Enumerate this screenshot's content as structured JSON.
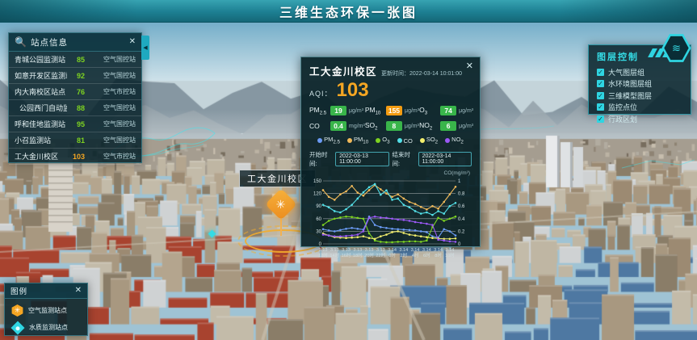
{
  "header": {
    "title": "三维生态环保一张图"
  },
  "colors": {
    "accent_cyan": "#2fd5e2",
    "aqi_orange": "#f5a623",
    "chip_good": "#39b54a",
    "chip_moderate": "#f39c12"
  },
  "station_panel": {
    "title": "站点信息",
    "close_label": "✕",
    "search_icon": "search-icon",
    "rows": [
      {
        "name": "青城公园监测站",
        "value": "85",
        "type": "空气国控站"
      },
      {
        "name": "如意开发区监测站",
        "value": "92",
        "type": "空气国控站"
      },
      {
        "name": "内大南校区站点",
        "value": "76",
        "type": "空气市控站"
      },
      {
        "name": "公园西门自动监测站",
        "value": "88",
        "type": "空气国控站"
      },
      {
        "name": "呼和佳地监测站",
        "value": "95",
        "type": "空气国控站"
      },
      {
        "name": "小召监测站",
        "value": "81",
        "type": "空气国控站"
      },
      {
        "name": "工大金川校区",
        "value": "103",
        "type": "空气市控站"
      }
    ]
  },
  "popup": {
    "title": "工大金川校区",
    "update_time_label": "更新时间：",
    "update_time": "2022-03-14 10:01:00",
    "close_label": "✕",
    "aqi_label": "AQI：",
    "aqi": "103",
    "pollutants": [
      {
        "name": "PM2.5",
        "value": "19",
        "unit": "μg/m³",
        "level": "good"
      },
      {
        "name": "PM10",
        "value": "155",
        "unit": "μg/m³",
        "level": "moderate"
      },
      {
        "name": "O3",
        "value": "74",
        "unit": "μg/m³",
        "level": "good"
      },
      {
        "name": "CO",
        "value": "0.4",
        "unit": "mg/m³",
        "level": "good"
      },
      {
        "name": "SO2",
        "value": "8",
        "unit": "μg/m³",
        "level": "good"
      },
      {
        "name": "NO2",
        "value": "6",
        "unit": "μg/m³",
        "level": "good"
      }
    ],
    "time_range": {
      "start_label": "开始时间:",
      "start": "2022-03-13 11:00:00",
      "end_label": "结束时间:",
      "end": "2022-03-14 11:00:00"
    }
  },
  "chart_data": {
    "type": "line",
    "title": "站点24小时污染物浓度趋势",
    "x_labels": [
      "3.13 12时",
      "3.13 14时",
      "3.13 16时",
      "3.13 18时",
      "3.13 20时",
      "3.13 22时",
      "3.14 0时",
      "3.14 2时",
      "3.14 4时",
      "3.14 6时",
      "3.14 8时",
      "3.14 10时"
    ],
    "y_left": {
      "ticks": [
        0,
        30,
        60,
        90,
        120,
        150
      ],
      "max": 150
    },
    "y_right": {
      "ticks": [
        0,
        0.2,
        0.4,
        0.6,
        0.8,
        1
      ],
      "max": 1,
      "title": "CO(mg/m³)"
    },
    "grid": true,
    "legend_position": "top",
    "series": [
      {
        "name": "PM2.5",
        "color": "#6b9bf5",
        "axis": "left",
        "values": [
          35,
          32,
          30,
          33,
          36,
          38,
          36,
          34,
          65,
          45,
          40,
          38,
          36,
          35,
          34,
          33,
          32,
          30,
          28,
          18,
          15,
          35,
          30,
          20
        ]
      },
      {
        "name": "PM10",
        "color": "#f0b95a",
        "axis": "left",
        "values": [
          128,
          112,
          105,
          118,
          125,
          138,
          122,
          115,
          128,
          140,
          130,
          120,
          112,
          118,
          108,
          100,
          95,
          88,
          82,
          90,
          84,
          100,
          118,
          136
        ]
      },
      {
        "name": "O3",
        "color": "#7ed321",
        "axis": "left",
        "values": [
          45,
          55,
          60,
          63,
          65,
          64,
          62,
          60,
          25,
          8,
          5,
          4,
          4,
          5,
          5,
          6,
          6,
          5,
          8,
          40,
          62,
          55,
          60,
          65
        ]
      },
      {
        "name": "CO",
        "color": "#53e0e8",
        "axis": "right",
        "values": [
          0.62,
          0.58,
          0.52,
          0.5,
          0.55,
          0.62,
          0.72,
          0.82,
          0.9,
          0.95,
          0.78,
          0.85,
          0.7,
          0.72,
          0.62,
          0.58,
          0.52,
          0.48,
          0.5,
          0.46,
          0.52,
          0.48,
          0.6,
          0.65
        ]
      },
      {
        "name": "SO2",
        "color": "#f3ef6d",
        "axis": "left",
        "values": [
          25,
          20,
          16,
          15,
          14,
          15,
          16,
          18,
          14,
          12,
          18,
          22,
          28,
          30,
          26,
          22,
          20,
          18,
          16,
          14,
          13,
          12,
          12,
          13
        ]
      },
      {
        "name": "NO2",
        "color": "#9b59f6",
        "axis": "left",
        "values": [
          22,
          20,
          18,
          18,
          19,
          20,
          22,
          30,
          62,
          65,
          63,
          62,
          60,
          58,
          57,
          55,
          52,
          50,
          48,
          45,
          10,
          8,
          6,
          5
        ]
      }
    ]
  },
  "layer_panel": {
    "title": "图层控制",
    "items": [
      {
        "label": "大气图层组",
        "checked": true
      },
      {
        "label": "水环境图层组",
        "checked": true
      },
      {
        "label": "三维模型图层",
        "checked": true
      },
      {
        "label": "监控点位",
        "checked": true
      },
      {
        "label": "行政区划",
        "checked": true
      }
    ]
  },
  "legend_panel": {
    "title": "图例",
    "close_label": "✕",
    "items": [
      {
        "icon": "air-station-icon",
        "label": "空气监测站点"
      },
      {
        "icon": "water-station-icon",
        "label": "水质监测站点"
      }
    ]
  },
  "map": {
    "marker_label": "工大金川校区"
  }
}
